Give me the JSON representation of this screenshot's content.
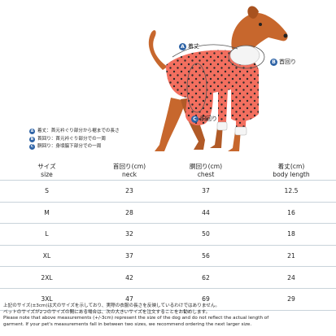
{
  "illustration": {
    "label_a": "着丈",
    "label_b": "首回り",
    "label_c": "胴回り",
    "badge_a": "A",
    "badge_b": "B",
    "badge_c": "C",
    "colors": {
      "sweater": "#f36f5f",
      "dots": "#2a2a2a",
      "dog": "#c7672d",
      "badge": "#2f64a6"
    }
  },
  "legend": [
    {
      "badge": "A",
      "text": "着丈：首元衿ぐり部分から裾までの長さ"
    },
    {
      "badge": "B",
      "text": "首回り：首元衿ぐり部分での一周"
    },
    {
      "badge": "C",
      "text": "胴回り：身頃脇下部分での一周"
    }
  ],
  "table": {
    "headers": [
      {
        "jp": "サイズ",
        "en": "size"
      },
      {
        "jp": "首回り(cm)",
        "en": "neck"
      },
      {
        "jp": "胴回り(cm)",
        "en": "chest"
      },
      {
        "jp": "着丈(cm)",
        "en": "body length"
      }
    ],
    "rows": [
      [
        "S",
        "23",
        "37",
        "12.5"
      ],
      [
        "M",
        "28",
        "44",
        "16"
      ],
      [
        "L",
        "32",
        "50",
        "18"
      ],
      [
        "XL",
        "37",
        "56",
        "21"
      ],
      [
        "2XL",
        "42",
        "62",
        "24"
      ],
      [
        "3XL",
        "47",
        "69",
        "29"
      ]
    ]
  },
  "notes": [
    "上記のサイズ(±3cm)は犬のサイズを示しており、実際の衣服の長さを反映しているわけではありません。",
    "ペットのサイズが2つのサイズの間にある場合は、次の大きいサイズを注文することをお勧めします。",
    "Please note that above measurements (+/-3cm) represent the size of the dog and do not reflect the actual length of",
    "garment. If your pet's measurements fall in between two sizes, we recommend ordering the next larger size."
  ]
}
